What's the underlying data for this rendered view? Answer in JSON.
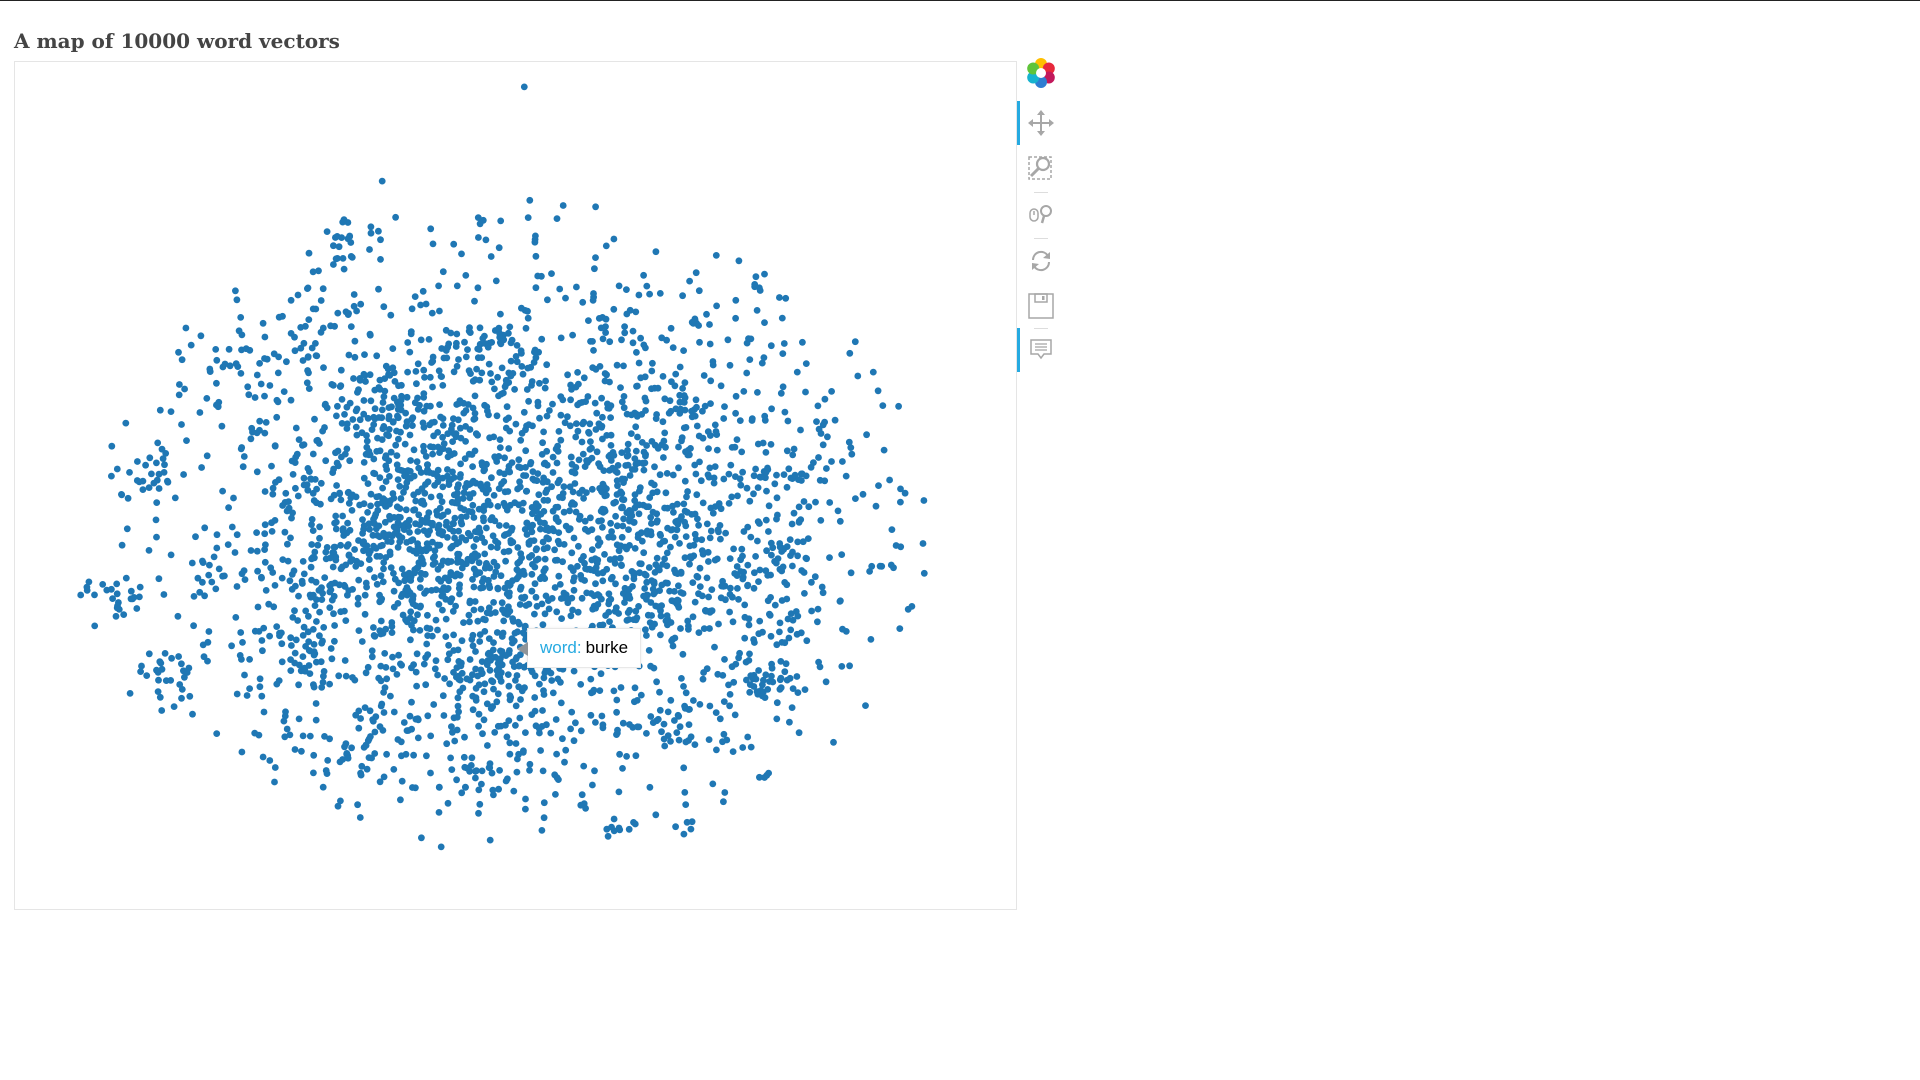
{
  "title": "A map of 10000 word vectors",
  "chart_data": {
    "type": "scatter",
    "title": "A map of 10000 word vectors",
    "point_count": 10000,
    "series_color": "#1f77b4",
    "xlabel": "",
    "ylabel": "",
    "grid": false,
    "axes_visible": false,
    "tooltip": {
      "label": "word:",
      "value": "burke",
      "x": 0.02,
      "y": -0.05
    },
    "clusters": [
      {
        "x": 0.02,
        "y": 0.95,
        "spread": 0.005,
        "n": 1
      },
      {
        "x": -0.36,
        "y": 0.62,
        "spread": 0.035,
        "n": 20
      },
      {
        "x": -0.45,
        "y": 0.38,
        "spread": 0.03,
        "n": 16
      },
      {
        "x": -0.64,
        "y": 0.36,
        "spread": 0.035,
        "n": 16
      },
      {
        "x": -0.03,
        "y": 0.37,
        "spread": 0.045,
        "n": 28
      },
      {
        "x": 0.2,
        "y": 0.42,
        "spread": 0.02,
        "n": 6
      },
      {
        "x": 0.4,
        "y": 0.43,
        "spread": 0.02,
        "n": 5
      },
      {
        "x": 0.35,
        "y": 0.24,
        "spread": 0.03,
        "n": 16
      },
      {
        "x": 0.24,
        "y": 0.11,
        "spread": 0.06,
        "n": 40
      },
      {
        "x": -0.28,
        "y": 0.24,
        "spread": 0.05,
        "n": 45
      },
      {
        "x": -0.23,
        "y": -0.02,
        "spread": 0.12,
        "n": 280
      },
      {
        "x": -0.02,
        "y": -0.32,
        "spread": 0.05,
        "n": 70
      },
      {
        "x": 0.33,
        "y": -0.12,
        "spread": 0.09,
        "n": 110
      },
      {
        "x": 0.57,
        "y": -0.08,
        "spread": 0.05,
        "n": 35
      },
      {
        "x": -0.88,
        "y": -0.18,
        "spread": 0.035,
        "n": 22
      },
      {
        "x": -0.76,
        "y": -0.35,
        "spread": 0.04,
        "n": 25
      },
      {
        "x": -0.48,
        "y": -0.28,
        "spread": 0.05,
        "n": 40
      },
      {
        "x": 0.55,
        "y": -0.35,
        "spread": 0.04,
        "n": 28
      },
      {
        "x": 0.35,
        "y": -0.45,
        "spread": 0.035,
        "n": 22
      },
      {
        "x": 0.2,
        "y": -0.69,
        "spread": 0.03,
        "n": 10
      },
      {
        "x": 0.38,
        "y": -0.67,
        "spread": 0.012,
        "n": 5
      },
      {
        "x": -0.08,
        "y": -0.55,
        "spread": 0.06,
        "n": 35
      },
      {
        "x": -0.3,
        "y": -0.5,
        "spread": 0.06,
        "n": 35
      },
      {
        "x": 0.58,
        "y": -0.22,
        "spread": 0.04,
        "n": 20
      },
      {
        "x": -0.8,
        "y": 0.1,
        "spread": 0.04,
        "n": 18
      },
      {
        "x": 0.58,
        "y": 0.1,
        "spread": 0.04,
        "n": 22
      }
    ],
    "background": {
      "x": 0.0,
      "y": -0.02,
      "sx": 0.4,
      "sy": 0.3,
      "n": 2400
    },
    "xlim": [
      -1.1,
      1.1
    ],
    "ylim": [
      -0.85,
      1.0
    ]
  },
  "toolbar": {
    "logo_icon": "bokeh-logo-icon",
    "tools": [
      {
        "name": "pan-tool",
        "icon": "move-arrows-icon",
        "active": true
      },
      {
        "name": "box-zoom-tool",
        "icon": "box-zoom-icon",
        "active": false
      },
      {
        "name": "wheel-zoom-tool",
        "icon": "wheel-zoom-icon",
        "active": false
      },
      {
        "name": "reset-tool",
        "icon": "reset-icon",
        "active": false
      },
      {
        "name": "save-tool",
        "icon": "save-icon",
        "active": false
      },
      {
        "name": "hover-tool",
        "icon": "hover-tooltip-icon",
        "active": true
      }
    ],
    "accent": "#26aae1",
    "icon_color": "#a7a7a7"
  }
}
